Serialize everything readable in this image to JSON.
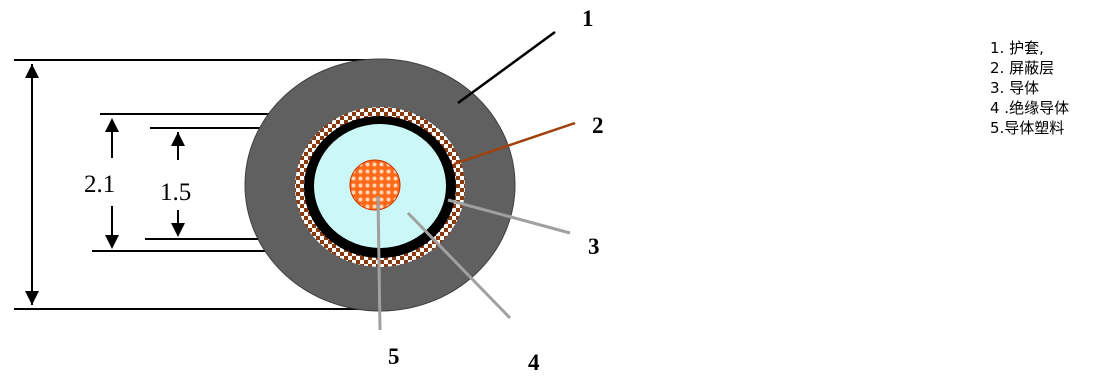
{
  "callouts": [
    "1",
    "2",
    "3",
    "4",
    "5"
  ],
  "dimensions": {
    "outer_inner": "2.1",
    "inner": "1.5"
  },
  "legend": [
    "1. 护套,",
    "2. 屏蔽层",
    "3. 导体",
    "4 .绝缘导体",
    "5.导体塑料"
  ],
  "colors": {
    "jacket": "#606060",
    "shield_dark": "#8b3a10",
    "shield_light": "#ffffff",
    "insulation_band": "#000000",
    "insulator": "#ccf7f7",
    "core": "#ff6a1a",
    "core_dots": "#ffd6b8",
    "leader_1": "#000000",
    "leader_2": "#a0400a",
    "leader_other": "#a0a0a0"
  }
}
